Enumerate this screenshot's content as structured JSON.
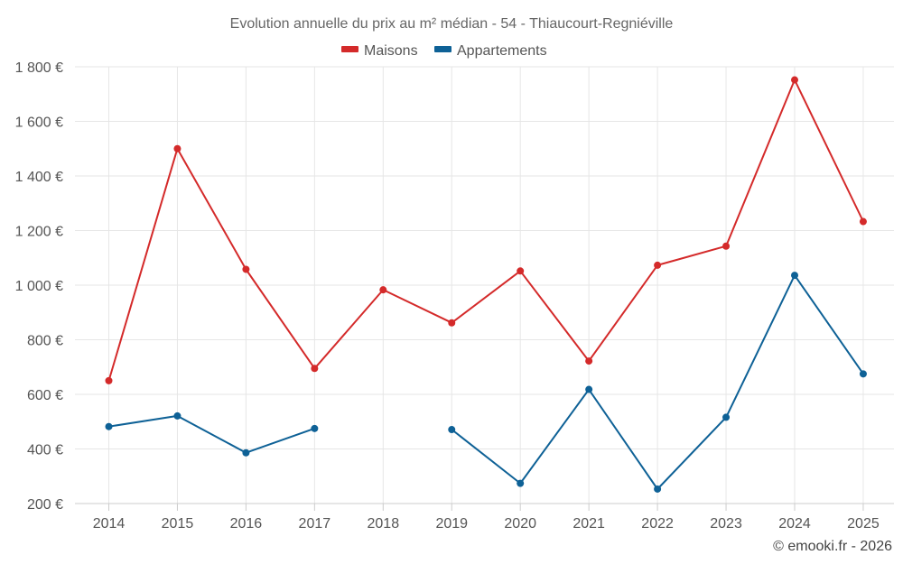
{
  "chart_data": {
    "type": "line",
    "title": "Evolution annuelle du prix au m² médian - 54 - Thiaucourt-Regniéville",
    "categories": [
      "2014",
      "2015",
      "2016",
      "2017",
      "2018",
      "2019",
      "2020",
      "2021",
      "2022",
      "2023",
      "2024",
      "2025"
    ],
    "series": [
      {
        "name": "Maisons",
        "color": "#d42a2a",
        "values": [
          650,
          1500,
          1058,
          695,
          983,
          862,
          1052,
          722,
          1073,
          1143,
          1752,
          1233
        ]
      },
      {
        "name": "Appartements",
        "color": "#0e6196",
        "values": [
          482,
          521,
          386,
          475,
          null,
          471,
          274,
          618,
          253,
          516,
          1036,
          675
        ]
      }
    ],
    "ylim": [
      200,
      1800
    ],
    "yticks": [
      200,
      400,
      600,
      800,
      1000,
      1200,
      1400,
      1600,
      1800
    ],
    "ytick_labels": [
      "200 €",
      "400 €",
      "600 €",
      "800 €",
      "1 000 €",
      "1 200 €",
      "1 400 €",
      "1 600 €",
      "1 800 €"
    ],
    "xlabel": "",
    "ylabel": "",
    "grid": true,
    "legend_position": "top-center"
  },
  "credit": "© emooki.fr - 2026"
}
